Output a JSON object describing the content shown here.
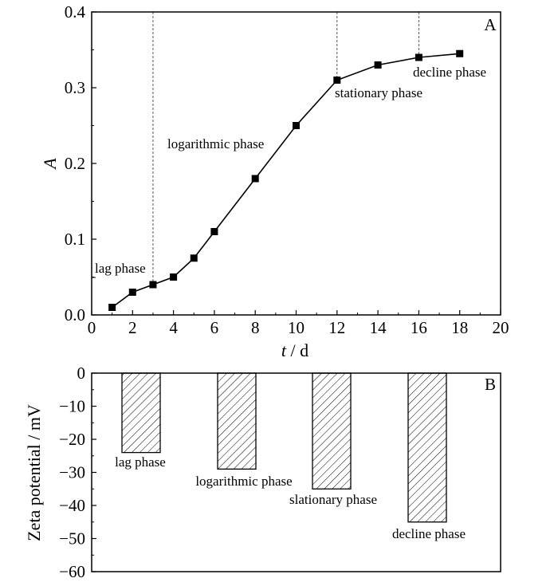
{
  "chart_data": [
    {
      "type": "line",
      "panel_label": "A",
      "title": "",
      "xlabel_italic": "t",
      "xlabel_rest": " / d",
      "ylabel": "A",
      "xlim": [
        0,
        20
      ],
      "ylim": [
        0.0,
        0.4
      ],
      "x_ticks": [
        0,
        2,
        4,
        6,
        8,
        10,
        12,
        14,
        16,
        18,
        20
      ],
      "y_ticks": [
        "0.0",
        "0.1",
        "0.2",
        "0.3",
        "0.4"
      ],
      "series": [
        {
          "name": "A",
          "x": [
            1,
            2,
            3,
            4,
            5,
            6,
            8,
            10,
            12,
            14,
            16,
            18
          ],
          "y": [
            0.01,
            0.03,
            0.04,
            0.05,
            0.075,
            0.11,
            0.18,
            0.25,
            0.31,
            0.33,
            0.34,
            0.345
          ]
        }
      ],
      "phase_boundaries": [
        3,
        12,
        16
      ],
      "annotations": [
        "lag phase",
        "logarithmic phase",
        "stationary phase",
        "decline phase"
      ]
    },
    {
      "type": "bar",
      "panel_label": "B",
      "ylabel": "Zeta potential / mV",
      "ylim": [
        -60,
        0
      ],
      "y_ticks": [
        "0",
        "−10",
        "−20",
        "−30",
        "−40",
        "−50",
        "−60"
      ],
      "categories": [
        "lag phase",
        "logarithmic phase",
        "slationary phase",
        "decline phase"
      ],
      "values": [
        -24,
        -29,
        -35,
        -45
      ]
    }
  ]
}
